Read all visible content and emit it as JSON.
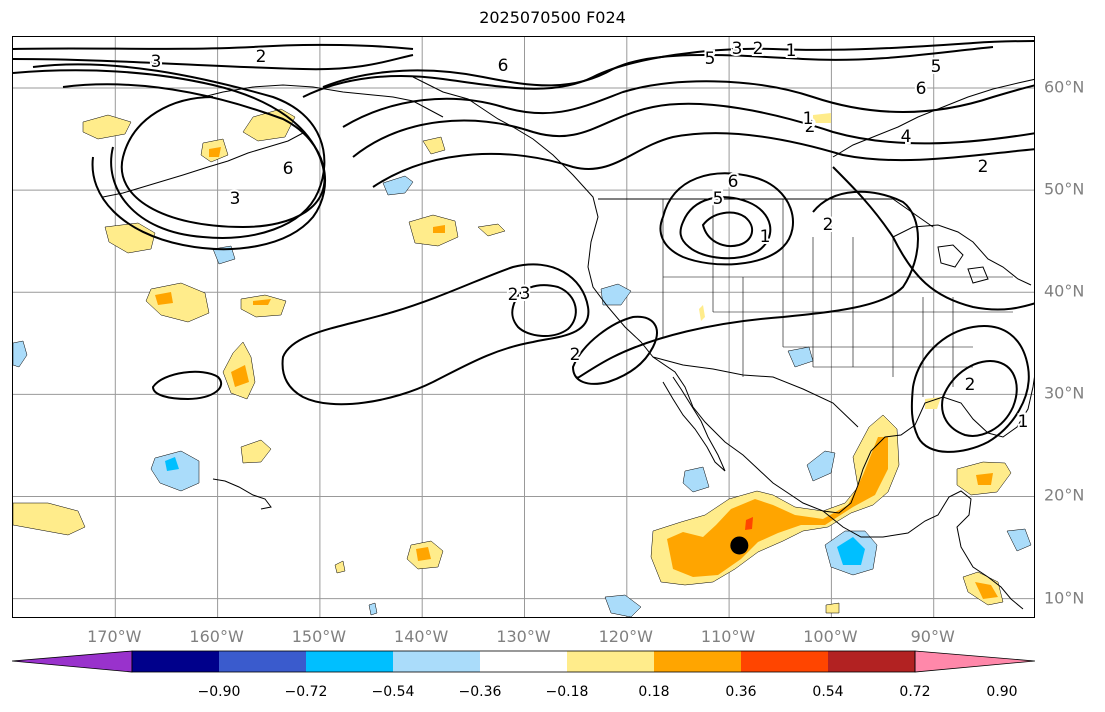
{
  "title": "2025070500 F024",
  "map": {
    "projection": "equirectangular",
    "lon_range": [
      -180,
      -80
    ],
    "lat_range": [
      8,
      65
    ],
    "gridlines": true,
    "lon_ticks": [
      "170°W",
      "160°W",
      "150°W",
      "140°W",
      "130°W",
      "120°W",
      "110°W",
      "100°W",
      "90°W"
    ],
    "lat_ticks": [
      "60°N",
      "50°N",
      "40°N",
      "30°N",
      "20°N",
      "10°N"
    ],
    "marker": {
      "lon": -109,
      "lat": 15.2,
      "color": "#000000"
    },
    "contour_labels": [
      "3",
      "2",
      "6",
      "5",
      "3",
      "2",
      "1",
      "6",
      "5",
      "6",
      "5",
      "6",
      "3",
      "2",
      "4",
      "2",
      "1",
      "2",
      "2",
      "3",
      "2",
      "2",
      "1",
      "1"
    ]
  },
  "colorbar": {
    "colors": [
      "#9932cc",
      "#00008b",
      "#3a5bcd",
      "#00bfff",
      "#aadcfa",
      "#ffffff",
      "#ffec8b",
      "#ffa500",
      "#ff4500",
      "#b22222",
      "#ff88aa"
    ],
    "tick_labels": [
      "−0.90",
      "−0.72",
      "−0.54",
      "−0.36",
      "−0.18",
      "0.18",
      "0.36",
      "0.54",
      "0.72",
      "0.90"
    ]
  }
}
